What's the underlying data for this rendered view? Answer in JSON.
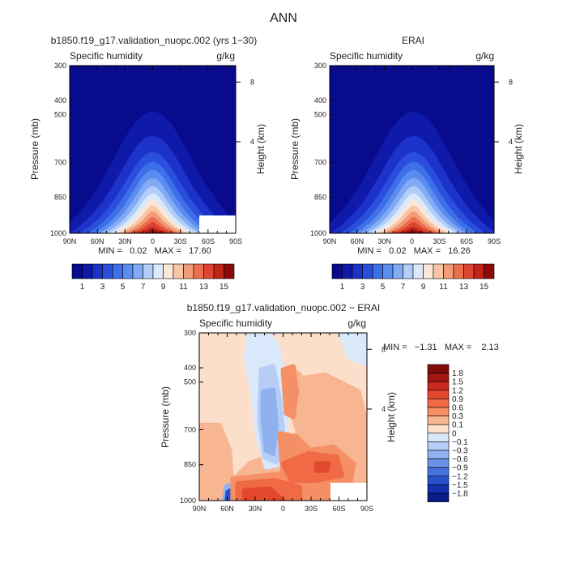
{
  "figure_title": "ANN",
  "panels": [
    {
      "title": "b1850.f19_g17.validation_nuopc.002 (yrs 1−30)",
      "variable": "Specific humidity",
      "units": "g/kg",
      "ylabel": "Pressure (mb)",
      "ylabel2": "Height (km)",
      "stats": "MIN =   0.02   MAX =   17.60"
    },
    {
      "title": "ERAI",
      "variable": "Specific humidity",
      "units": "g/kg",
      "ylabel": "Pressure (mb)",
      "ylabel2": "Height (km)",
      "stats": "MIN =   0.02   MAX =   16.26"
    },
    {
      "title": "b1850.f19_g17.validation_nuopc.002 − ERAI",
      "variable": "Specific humidity",
      "units": "g/kg",
      "ylabel": "Pressure (mb)",
      "ylabel2": "Height (km)",
      "stats": "MIN =   −1.31   MAX =    2.13"
    }
  ],
  "chart_data": [
    {
      "type": "heatmap",
      "title": "b1850.f19_g17.validation_nuopc.002 (yrs 1−30)",
      "xlabel": "",
      "ylabel": "Pressure (mb)",
      "x_ticks": [
        "90N",
        "60N",
        "30N",
        "0",
        "30S",
        "60S",
        "90S"
      ],
      "y_ticks": [
        "300",
        "400",
        "500",
        "700",
        "850",
        "1000"
      ],
      "y2_ticks": [
        "8",
        "4"
      ],
      "min": 0.02,
      "max": 17.6,
      "peak_lat": 0,
      "colorbar_levels": [
        "1",
        "3",
        "5",
        "7",
        "9",
        "11",
        "13",
        "15"
      ],
      "colormap": [
        "#080c8c",
        "#0f1aaa",
        "#1d32c9",
        "#2a4fdd",
        "#3d6fe8",
        "#5b8cf0",
        "#82abf5",
        "#b1cdf8",
        "#dbe9fb",
        "#fbe7d8",
        "#f7c6a6",
        "#f29c77",
        "#eb6f4e",
        "#dc4530",
        "#c02419",
        "#8e0a08"
      ]
    },
    {
      "type": "heatmap",
      "title": "ERAI",
      "xlabel": "",
      "ylabel": "Pressure (mb)",
      "x_ticks": [
        "90N",
        "60N",
        "30N",
        "0",
        "30S",
        "60S",
        "90S"
      ],
      "y_ticks": [
        "300",
        "400",
        "500",
        "700",
        "850",
        "1000"
      ],
      "y2_ticks": [
        "8",
        "4"
      ],
      "min": 0.02,
      "max": 16.26,
      "peak_lat": 2,
      "colorbar_levels": [
        "1",
        "3",
        "5",
        "7",
        "9",
        "11",
        "13",
        "15"
      ],
      "colormap": [
        "#080c8c",
        "#0f1aaa",
        "#1d32c9",
        "#2a4fdd",
        "#3d6fe8",
        "#5b8cf0",
        "#82abf5",
        "#b1cdf8",
        "#dbe9fb",
        "#fbe7d8",
        "#f7c6a6",
        "#f29c77",
        "#eb6f4e",
        "#dc4530",
        "#c02419",
        "#8e0a08"
      ]
    },
    {
      "type": "heatmap",
      "title": "b1850.f19_g17.validation_nuopc.002 − ERAI",
      "xlabel": "",
      "ylabel": "Pressure (mb)",
      "x_ticks": [
        "90N",
        "60N",
        "30N",
        "0",
        "30S",
        "60S",
        "90S"
      ],
      "y_ticks": [
        "300",
        "400",
        "500",
        "700",
        "850",
        "1000"
      ],
      "y2_ticks": [
        "8",
        "4"
      ],
      "min": -1.31,
      "max": 2.13,
      "colorbar_levels": [
        "1.8",
        "1.5",
        "1.2",
        "0.9",
        "0.6",
        "0.3",
        "0.1",
        "0",
        "−0.1",
        "−0.3",
        "−0.6",
        "−0.9",
        "−1.2",
        "−1.5",
        "−1.8"
      ],
      "colormap": [
        "#7e0a0a",
        "#a31513",
        "#c8291f",
        "#e3482d",
        "#f06a45",
        "#f59066",
        "#f8b592",
        "#fbdfcb",
        "#d9e8fb",
        "#b6cef6",
        "#8fb1ee",
        "#6a93e6",
        "#4672dd",
        "#2950cc",
        "#1430ae",
        "#0a1b85"
      ]
    }
  ]
}
